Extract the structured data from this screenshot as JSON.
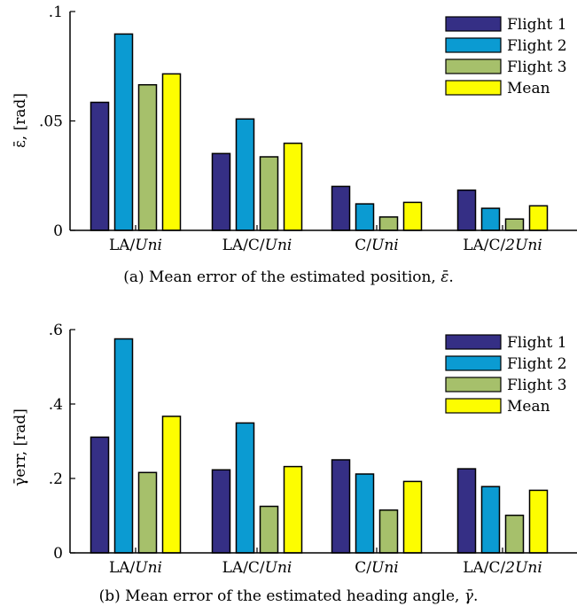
{
  "colors": {
    "Flight 1": "#352f85",
    "Flight 2": "#0b9bd2",
    "Flight 3": "#a6c06b",
    "Mean": "#fdfd00",
    "axis": "#000000"
  },
  "chart_data": [
    {
      "type": "bar",
      "caption": "(a) Mean error of the estimated position, ε̄.",
      "caption_prefix": "(a) Mean error of the estimated position, ",
      "caption_symbol": "ε̄",
      "ylabel": "ε̄, [rad]",
      "ylim": [
        0,
        0.1
      ],
      "yticks": [
        0,
        0.05,
        0.1
      ],
      "ytick_labels": [
        "0",
        ".05",
        ".1"
      ],
      "categories": [
        "LA/Uni",
        "LA/C/Uni",
        "C/Uni",
        "LA/C/2Uni"
      ],
      "category_parts": [
        {
          "plain": "LA/",
          "italic": "Uni"
        },
        {
          "plain": "LA/C/",
          "italic": "Uni"
        },
        {
          "plain": "C/",
          "italic": "Uni"
        },
        {
          "plain": "LA/C/",
          "italic": "2Uni"
        }
      ],
      "legend_position": "top-right",
      "series": [
        {
          "name": "Flight 1",
          "values": [
            0.0585,
            0.0351,
            0.0201,
            0.0184
          ]
        },
        {
          "name": "Flight 2",
          "values": [
            0.0897,
            0.0509,
            0.0121,
            0.0101
          ]
        },
        {
          "name": "Flight 3",
          "values": [
            0.0665,
            0.0336,
            0.0061,
            0.0052
          ]
        },
        {
          "name": "Mean",
          "values": [
            0.0715,
            0.0398,
            0.0128,
            0.0112
          ]
        }
      ]
    },
    {
      "type": "bar",
      "caption": "(b) Mean error of the estimated heading angle, γ̄.",
      "caption_prefix": "(b) Mean error of the estimated heading angle, ",
      "caption_symbol": "γ̄",
      "ylabel": "γ̄err, [rad]",
      "ylim": [
        0,
        0.6
      ],
      "yticks": [
        0,
        0.2,
        0.4,
        0.6
      ],
      "ytick_labels": [
        "0",
        ".2",
        ".4",
        ".6"
      ],
      "categories": [
        "LA/Uni",
        "LA/C/Uni",
        "C/Uni",
        "LA/C/2Uni"
      ],
      "category_parts": [
        {
          "plain": "LA/",
          "italic": "Uni"
        },
        {
          "plain": "LA/C/",
          "italic": "Uni"
        },
        {
          "plain": "C/",
          "italic": "Uni"
        },
        {
          "plain": "LA/C/",
          "italic": "2Uni"
        }
      ],
      "legend_position": "top-right",
      "series": [
        {
          "name": "Flight 1",
          "values": [
            0.311,
            0.223,
            0.25,
            0.226
          ]
        },
        {
          "name": "Flight 2",
          "values": [
            0.575,
            0.349,
            0.212,
            0.178
          ]
        },
        {
          "name": "Flight 3",
          "values": [
            0.216,
            0.125,
            0.115,
            0.101
          ]
        },
        {
          "name": "Mean",
          "values": [
            0.367,
            0.232,
            0.192,
            0.168
          ]
        }
      ]
    }
  ]
}
